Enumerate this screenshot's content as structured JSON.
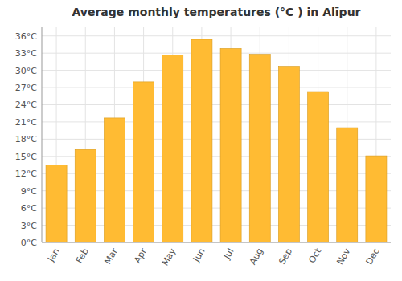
{
  "chart_data": {
    "type": "bar",
    "title": "Average monthly temperatures (°C ) in Alīpur",
    "categories": [
      "Jan",
      "Feb",
      "Mar",
      "Apr",
      "May",
      "Jun",
      "Jul",
      "Aug",
      "Sep",
      "Oct",
      "Nov",
      "Dec"
    ],
    "values": [
      13.5,
      16.2,
      21.7,
      28.0,
      32.7,
      35.4,
      33.8,
      32.8,
      30.7,
      26.3,
      20.0,
      15.1
    ],
    "color": "#FFBB33",
    "ylim": [
      0,
      37.5
    ],
    "yticks": [
      {
        "value": 0,
        "label": "0°C"
      },
      {
        "value": 3,
        "label": "3°C"
      },
      {
        "value": 6,
        "label": "6°C"
      },
      {
        "value": 9,
        "label": "9°C"
      },
      {
        "value": 12,
        "label": "12°C"
      },
      {
        "value": 15,
        "label": "15°C"
      },
      {
        "value": 18,
        "label": "18°C"
      },
      {
        "value": 21,
        "label": "21°C"
      },
      {
        "value": 24,
        "label": "24°C"
      },
      {
        "value": 27,
        "label": "27°C"
      },
      {
        "value": 30,
        "label": "30°C"
      },
      {
        "value": 33,
        "label": "33°C"
      },
      {
        "value": 36,
        "label": "36°C"
      }
    ],
    "grid": true
  }
}
